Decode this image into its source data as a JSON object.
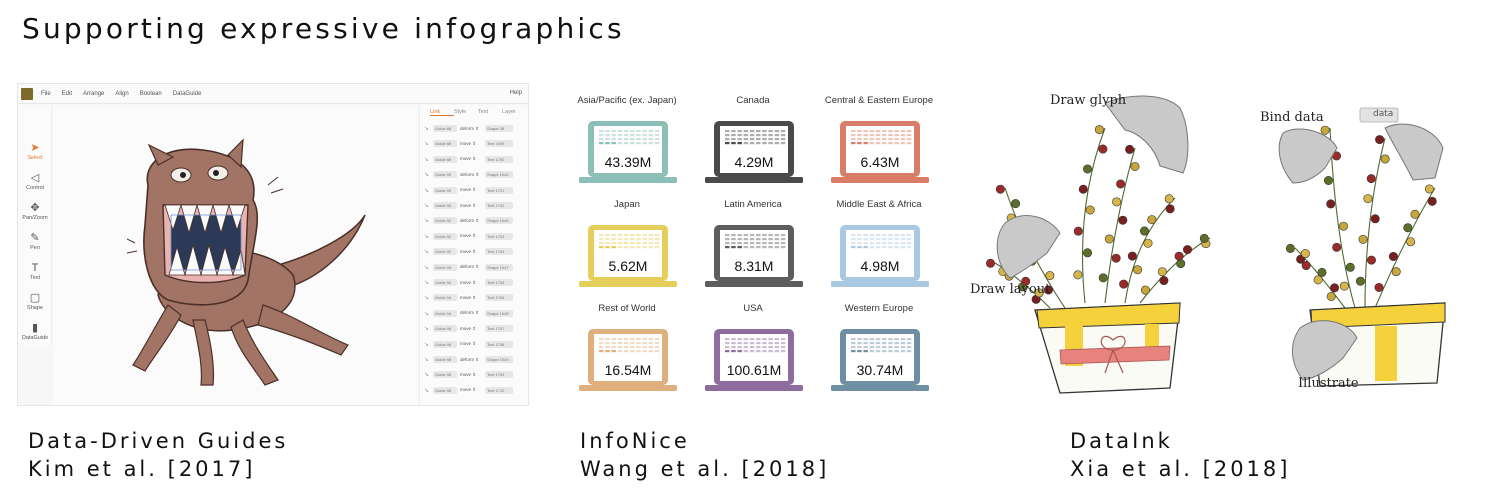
{
  "slide": {
    "title": "Supporting expressive infographics"
  },
  "sections": [
    {
      "name": "Data-Driven Guides",
      "citation": "Kim et al. [2017]"
    },
    {
      "name": "InfoNice",
      "citation": "Wang et al. [2018]"
    },
    {
      "name": "DataInk",
      "citation": "Xia et al. [2018]"
    }
  ],
  "ddg": {
    "menus": [
      "File",
      "Edit",
      "Arrange",
      "Align",
      "Boolean",
      "DataGuide"
    ],
    "help": "Help",
    "tools": [
      "Select",
      "Control",
      "Pan/Zoom",
      "Pen",
      "Text",
      "Shape",
      "DataGuide"
    ],
    "panel_tabs": [
      "Link",
      "Style",
      "Text",
      "Layer"
    ],
    "rows": [
      [
        "Guide 88",
        "deform",
        "Shape 38"
      ],
      [
        "Guide 88",
        "move",
        "Text 1699"
      ],
      [
        "Guide 88",
        "move",
        "Text 1700"
      ],
      [
        "Guide 90",
        "deform",
        "Shape 1042"
      ],
      [
        "Guide 90",
        "move",
        "Text 1701"
      ],
      [
        "Guide 90",
        "move",
        "Text 1702"
      ],
      [
        "Guide 92",
        "deform",
        "Shape 1046"
      ],
      [
        "Guide 92",
        "move",
        "Text 1703"
      ],
      [
        "Guide 92",
        "move",
        "Text 1704"
      ],
      [
        "Guide 94",
        "deform",
        "Shape 1047"
      ],
      [
        "Guide 94",
        "move",
        "Text 1705"
      ],
      [
        "Guide 94",
        "move",
        "Text 1706"
      ],
      [
        "Guide 94",
        "deform",
        "Shape 1048"
      ],
      [
        "Guide 96",
        "move",
        "Text 1707"
      ],
      [
        "Guide 96",
        "move",
        "Text 1708"
      ],
      [
        "Guide 98",
        "deform",
        "Shape 1049"
      ],
      [
        "Guide 98",
        "move",
        "Text 1709"
      ],
      [
        "Guide 98",
        "move",
        "Text 1710"
      ]
    ]
  },
  "infonice": {
    "cells": [
      {
        "region": "Asia/Pacific (ex. Japan)",
        "value": "43.39M",
        "color": "#8bbfb8"
      },
      {
        "region": "Canada",
        "value": "4.29M",
        "color": "#4a4a4a"
      },
      {
        "region": "Central & Eastern Europe",
        "value": "6.43M",
        "color": "#d97d68"
      },
      {
        "region": "Japan",
        "value": "5.62M",
        "color": "#e5cf5a"
      },
      {
        "region": "Latin America",
        "value": "8.31M",
        "color": "#5d5d5d"
      },
      {
        "region": "Middle East & Africa",
        "value": "4.98M",
        "color": "#a9c9e3"
      },
      {
        "region": "Rest of World",
        "value": "16.54M",
        "color": "#ddb07d"
      },
      {
        "region": "USA",
        "value": "100.61M",
        "color": "#8e6c9e"
      },
      {
        "region": "Western Europe",
        "value": "30.74M",
        "color": "#6f8fa5"
      }
    ]
  },
  "dataink": {
    "labels": [
      "Draw glyph",
      "Bind data",
      "data",
      "Draw layout",
      "Illustrate"
    ]
  }
}
